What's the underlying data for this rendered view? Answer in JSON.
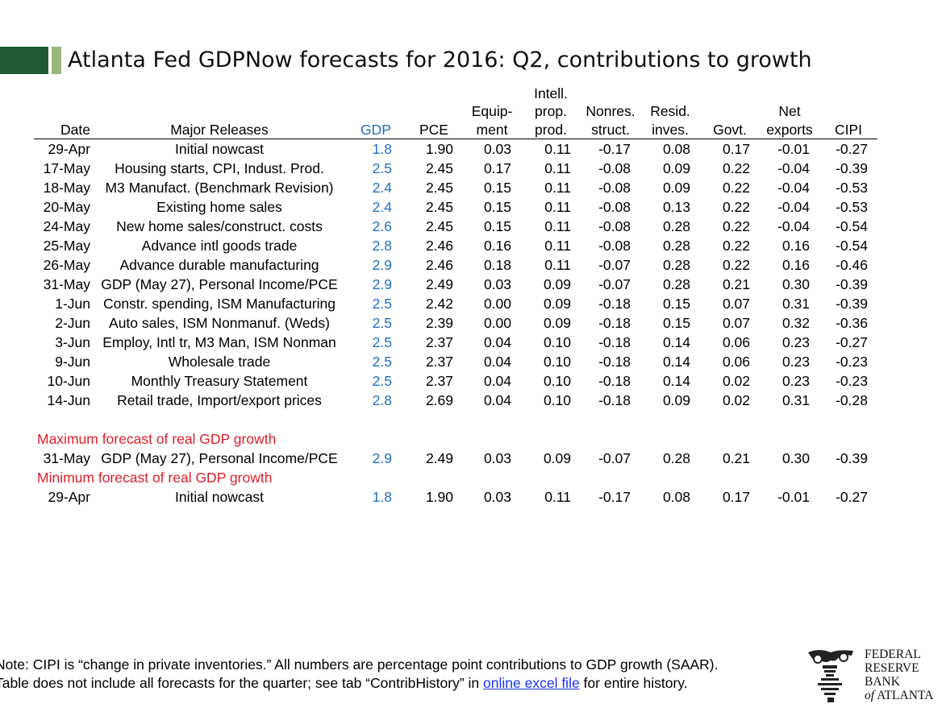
{
  "title": "Atlanta Fed GDPNow forecasts for 2016: Q2, contributions to growth",
  "columns": [
    [
      "",
      "",
      "Date"
    ],
    [
      "",
      "",
      "Major Releases"
    ],
    [
      "",
      "",
      "GDP"
    ],
    [
      "",
      "",
      "PCE"
    ],
    [
      "",
      "Equip-",
      "ment"
    ],
    [
      "Intell.",
      "prop.",
      "prod."
    ],
    [
      "",
      "Nonres.",
      "struct."
    ],
    [
      "",
      "Resid.",
      "inves."
    ],
    [
      "",
      "",
      "Govt."
    ],
    [
      "",
      "Net",
      "exports"
    ],
    [
      "",
      "",
      "CIPI"
    ]
  ],
  "rows": [
    [
      "29-Apr",
      "Initial nowcast",
      "1.8",
      "1.90",
      "0.03",
      "0.11",
      "-0.17",
      "0.08",
      "0.17",
      "-0.01",
      "-0.27"
    ],
    [
      "17-May",
      "Housing starts, CPI, Indust. Prod.",
      "2.5",
      "2.45",
      "0.17",
      "0.11",
      "-0.08",
      "0.09",
      "0.22",
      "-0.04",
      "-0.39"
    ],
    [
      "18-May",
      "M3 Manufact. (Benchmark Revision)",
      "2.4",
      "2.45",
      "0.15",
      "0.11",
      "-0.08",
      "0.09",
      "0.22",
      "-0.04",
      "-0.53"
    ],
    [
      "20-May",
      "Existing home sales",
      "2.4",
      "2.45",
      "0.15",
      "0.11",
      "-0.08",
      "0.13",
      "0.22",
      "-0.04",
      "-0.53"
    ],
    [
      "24-May",
      "New home sales/construct. costs",
      "2.6",
      "2.45",
      "0.15",
      "0.11",
      "-0.08",
      "0.28",
      "0.22",
      "-0.04",
      "-0.54"
    ],
    [
      "25-May",
      "Advance intl goods trade",
      "2.8",
      "2.46",
      "0.16",
      "0.11",
      "-0.08",
      "0.28",
      "0.22",
      "0.16",
      "-0.54"
    ],
    [
      "26-May",
      "Advance durable manufacturing",
      "2.9",
      "2.46",
      "0.18",
      "0.11",
      "-0.07",
      "0.28",
      "0.22",
      "0.16",
      "-0.46"
    ],
    [
      "31-May",
      "GDP (May 27), Personal Income/PCE",
      "2.9",
      "2.49",
      "0.03",
      "0.09",
      "-0.07",
      "0.28",
      "0.21",
      "0.30",
      "-0.39"
    ],
    [
      "1-Jun",
      "Constr. spending, ISM Manufacturing",
      "2.5",
      "2.42",
      "0.00",
      "0.09",
      "-0.18",
      "0.15",
      "0.07",
      "0.31",
      "-0.39"
    ],
    [
      "2-Jun",
      "Auto sales, ISM Nonmanuf. (Weds)",
      "2.5",
      "2.39",
      "0.00",
      "0.09",
      "-0.18",
      "0.15",
      "0.07",
      "0.32",
      "-0.36"
    ],
    [
      "3-Jun",
      "Employ, Intl tr, M3 Man, ISM Nonman",
      "2.5",
      "2.37",
      "0.04",
      "0.10",
      "-0.18",
      "0.14",
      "0.06",
      "0.23",
      "-0.27"
    ],
    [
      "9-Jun",
      "Wholesale trade",
      "2.5",
      "2.37",
      "0.04",
      "0.10",
      "-0.18",
      "0.14",
      "0.06",
      "0.23",
      "-0.23"
    ],
    [
      "10-Jun",
      "Monthly Treasury Statement",
      "2.5",
      "2.37",
      "0.04",
      "0.10",
      "-0.18",
      "0.14",
      "0.02",
      "0.23",
      "-0.23"
    ],
    [
      "14-Jun",
      "Retail trade, Import/export prices",
      "2.8",
      "2.69",
      "0.04",
      "0.10",
      "-0.18",
      "0.09",
      "0.02",
      "0.31",
      "-0.28"
    ]
  ],
  "max_label": "Maximum forecast of real GDP growth",
  "max_row": [
    "31-May",
    "GDP (May 27), Personal Income/PCE",
    "2.9",
    "2.49",
    "0.03",
    "0.09",
    "-0.07",
    "0.28",
    "0.21",
    "0.30",
    "-0.39"
  ],
  "min_label": "Minimum forecast of real GDP growth",
  "min_row": [
    "29-Apr",
    "Initial nowcast",
    "1.8",
    "1.90",
    "0.03",
    "0.11",
    "-0.17",
    "0.08",
    "0.17",
    "-0.01",
    "-0.27"
  ],
  "note": {
    "line1": "Note:  CIPI is “change in private inventories.”  All numbers are percentage point contributions to GDP growth (SAAR).",
    "line2_pre": "Table does not include all forecasts for the quarter; see tab “ContribHistory” in ",
    "link": "online excel file",
    "line2_post": " for entire history."
  },
  "logo": {
    "icon": "eagle-seal-icon",
    "line1": "FEDERAL",
    "line2": "RESERVE",
    "line3": "BANK",
    "line4a": "of",
    "line4b": " ATLANTA"
  },
  "colors": {
    "gdp": "#1f6fbf",
    "section": "#e0202a",
    "title_bar_dark": "#1f5a34",
    "title_bar_light": "#9ab57a",
    "link": "#1a33ff"
  }
}
